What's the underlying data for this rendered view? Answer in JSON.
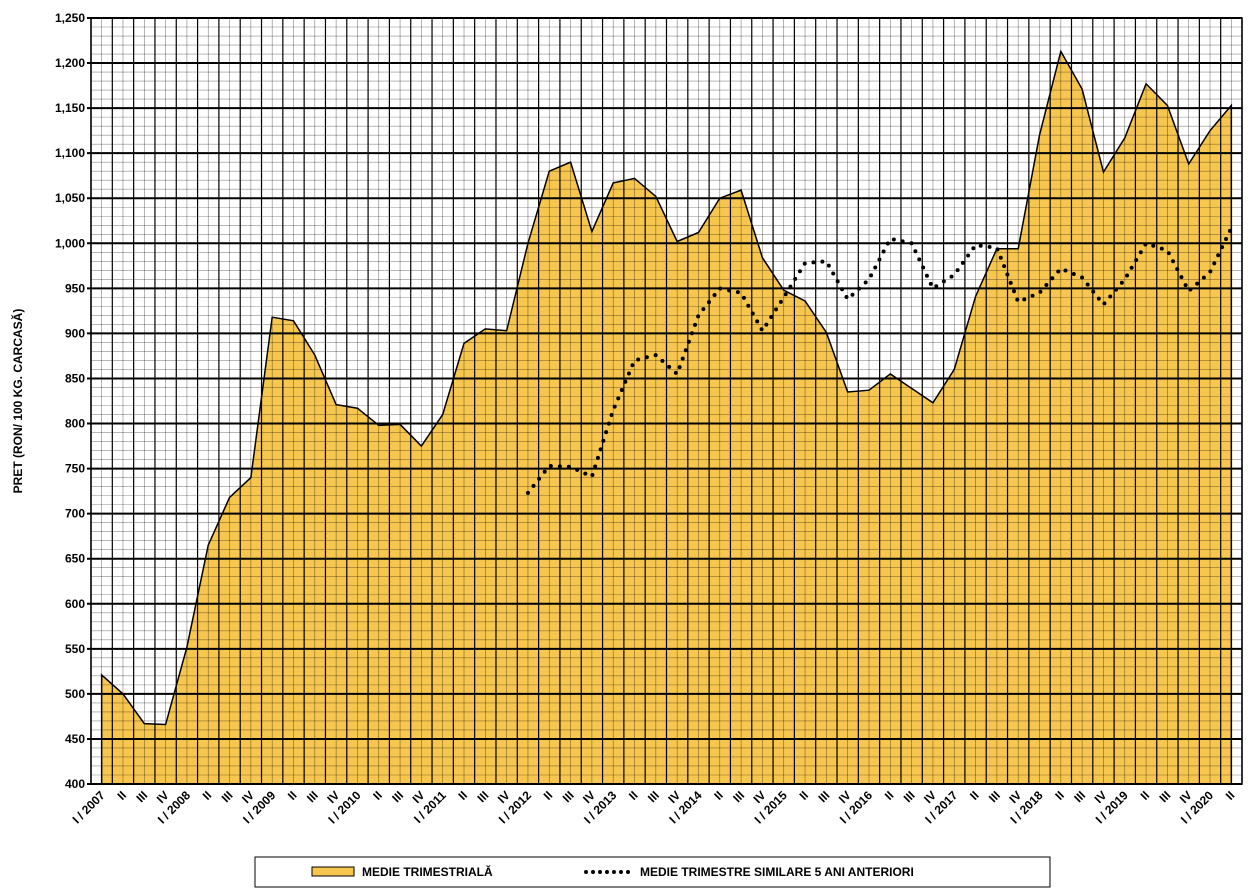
{
  "chart_data": {
    "type": "area",
    "y_label": "PRET (RON/ 100 KG. CARCASĂ)",
    "categories": [
      "I / 2007",
      "II",
      "III",
      "IV",
      "I / 2008",
      "II",
      "III",
      "IV",
      "I / 2009",
      "II",
      "III",
      "IV",
      "I / 2010",
      "II",
      "III",
      "IV",
      "I / 2011",
      "II",
      "III",
      "IV",
      "I / 2012",
      "II",
      "III",
      "IV",
      "I / 2013",
      "II",
      "III",
      "IV",
      "I / 2014",
      "II",
      "III",
      "IV",
      "I / 2015",
      "II",
      "III",
      "IV",
      "I / 2016",
      "II",
      "III",
      "IV",
      "I / 2017",
      "II",
      "III",
      "IV",
      "I / 2018",
      "II",
      "III",
      "IV",
      "I / 2019",
      "II",
      "III",
      "IV",
      "I / 2020",
      "II"
    ],
    "series": [
      {
        "name": "MEDIE TRIMESTRIALĂ",
        "color": "#f7c64f",
        "values": [
          521,
          500,
          467,
          466,
          552,
          665,
          718,
          740,
          918,
          914,
          876,
          821,
          817,
          798,
          799,
          775,
          810,
          889,
          905,
          903,
          1000,
          1080,
          1090,
          1013,
          1067,
          1072,
          1052,
          1002,
          1012,
          1050,
          1059,
          984,
          948,
          936,
          901,
          835,
          837,
          855,
          839,
          823,
          860,
          941,
          994,
          994,
          1120,
          1213,
          1171,
          1079,
          1117,
          1177,
          1153,
          1088,
          1125,
          1153
        ]
      },
      {
        "name": "MEDIE TRIMESTRE SIMILARE 5 ANI ANTERIORI",
        "color": "#000000",
        "values": [
          null,
          null,
          null,
          null,
          null,
          null,
          null,
          null,
          null,
          null,
          null,
          null,
          null,
          null,
          null,
          null,
          null,
          null,
          null,
          null,
          723,
          753,
          752,
          741,
          815,
          870,
          876,
          855,
          920,
          950,
          945,
          903,
          940,
          978,
          980,
          938,
          960,
          1005,
          1000,
          950,
          965,
          998,
          995,
          935,
          945,
          972,
          962,
          932,
          960,
          1000,
          992,
          947,
          968,
          1017
        ]
      }
    ],
    "ylim": [
      400,
      1250
    ],
    "yticks": [
      400,
      450,
      500,
      550,
      600,
      650,
      700,
      750,
      800,
      850,
      900,
      950,
      {
        "value": 1000,
        "label": "1,000"
      },
      {
        "value": 1050,
        "label": "1,050"
      },
      {
        "value": 1100,
        "label": "1,100"
      },
      {
        "value": 1150,
        "label": "1,150"
      },
      {
        "value": 1200,
        "label": "1,200"
      },
      {
        "value": 1250,
        "label": "1,250"
      }
    ],
    "grid": true
  }
}
